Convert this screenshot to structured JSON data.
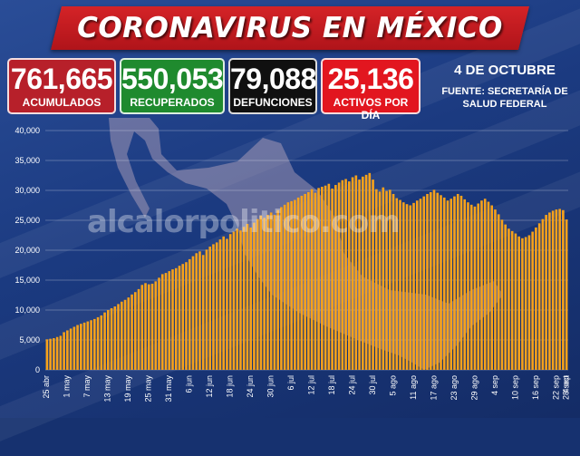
{
  "header": {
    "title": "CORONAVIRUS EN MÉXICO"
  },
  "stats": [
    {
      "value": "761,665",
      "label": "ACUMULADOS",
      "color": "#b7202a"
    },
    {
      "value": "550,053",
      "label": "RECUPERADOS",
      "color": "#1f8a2e"
    },
    {
      "value": "79,088",
      "label": "DEFUNCIONES",
      "color": "#101010"
    },
    {
      "value": "25,136",
      "label": "ACTIVOS POR DÍA",
      "color": "#e2161f"
    }
  ],
  "date": "4 DE OCTUBRE",
  "source_line1": "FUENTE: SECRETARÍA DE",
  "source_line2": "SALUD FEDERAL",
  "watermark": "alcalorpolitico.com",
  "chart_data": {
    "type": "bar",
    "title": "",
    "xlabel": "",
    "ylabel": "",
    "ylim": [
      0,
      40000
    ],
    "yticks": [
      0,
      5000,
      10000,
      15000,
      20000,
      25000,
      30000,
      35000,
      40000
    ],
    "ytick_labels": [
      "0",
      "5,000",
      "10,000",
      "15,000",
      "20,000",
      "25,000",
      "30,000",
      "35,000",
      "40,000"
    ],
    "bar_color": "#f7a21b",
    "x_labels": [
      "25 abr",
      "1 may",
      "7 may",
      "13 may",
      "19 may",
      "25 may",
      "31 may",
      "6 jun",
      "12 jun",
      "18 jun",
      "24 jun",
      "30 jun",
      "6 jul",
      "12 jul",
      "18 jul",
      "24 jul",
      "30 jul",
      "5 ago",
      "11 ago",
      "17 ago",
      "23 ago",
      "29 ago",
      "4 sep",
      "10 sep",
      "16 sep",
      "22 sep",
      "28 sep",
      "4 oct"
    ],
    "values": [
      5100,
      5200,
      5300,
      5500,
      5700,
      6300,
      6600,
      6900,
      7200,
      7500,
      7700,
      7900,
      8100,
      8300,
      8500,
      8800,
      9100,
      9600,
      10000,
      10300,
      10600,
      11000,
      11400,
      11700,
      12100,
      12600,
      13000,
      13500,
      14200,
      14500,
      14300,
      14400,
      14800,
      15400,
      16000,
      16200,
      16500,
      16800,
      17000,
      17400,
      17700,
      18000,
      18500,
      19000,
      19500,
      19800,
      19200,
      20100,
      20600,
      21000,
      21300,
      21800,
      22300,
      21900,
      22700,
      23100,
      23600,
      23300,
      23900,
      24400,
      23800,
      24600,
      25200,
      25800,
      25400,
      25900,
      26300,
      25900,
      26700,
      27200,
      27600,
      28000,
      28200,
      28400,
      28800,
      29100,
      29400,
      29700,
      30200,
      29600,
      30400,
      30600,
      30800,
      31100,
      30300,
      30900,
      31300,
      31700,
      31900,
      31500,
      32200,
      32500,
      31800,
      32300,
      32600,
      32900,
      31800,
      30200,
      29800,
      30500,
      29900,
      30100,
      29400,
      28700,
      28400,
      28000,
      27700,
      27500,
      27900,
      28300,
      28600,
      29000,
      29400,
      29700,
      30100,
      29600,
      29200,
      28800,
      28300,
      28600,
      29000,
      29400,
      29100,
      28500,
      28000,
      27600,
      27300,
      27800,
      28300,
      28600,
      28100,
      27500,
      26800,
      26000,
      25100,
      24300,
      23600,
      23200,
      22800,
      22300,
      22000,
      22200,
      22500,
      23100,
      23800,
      24500,
      25200,
      25900,
      26300,
      26600,
      26800,
      26900,
      26700,
      25136
    ]
  }
}
